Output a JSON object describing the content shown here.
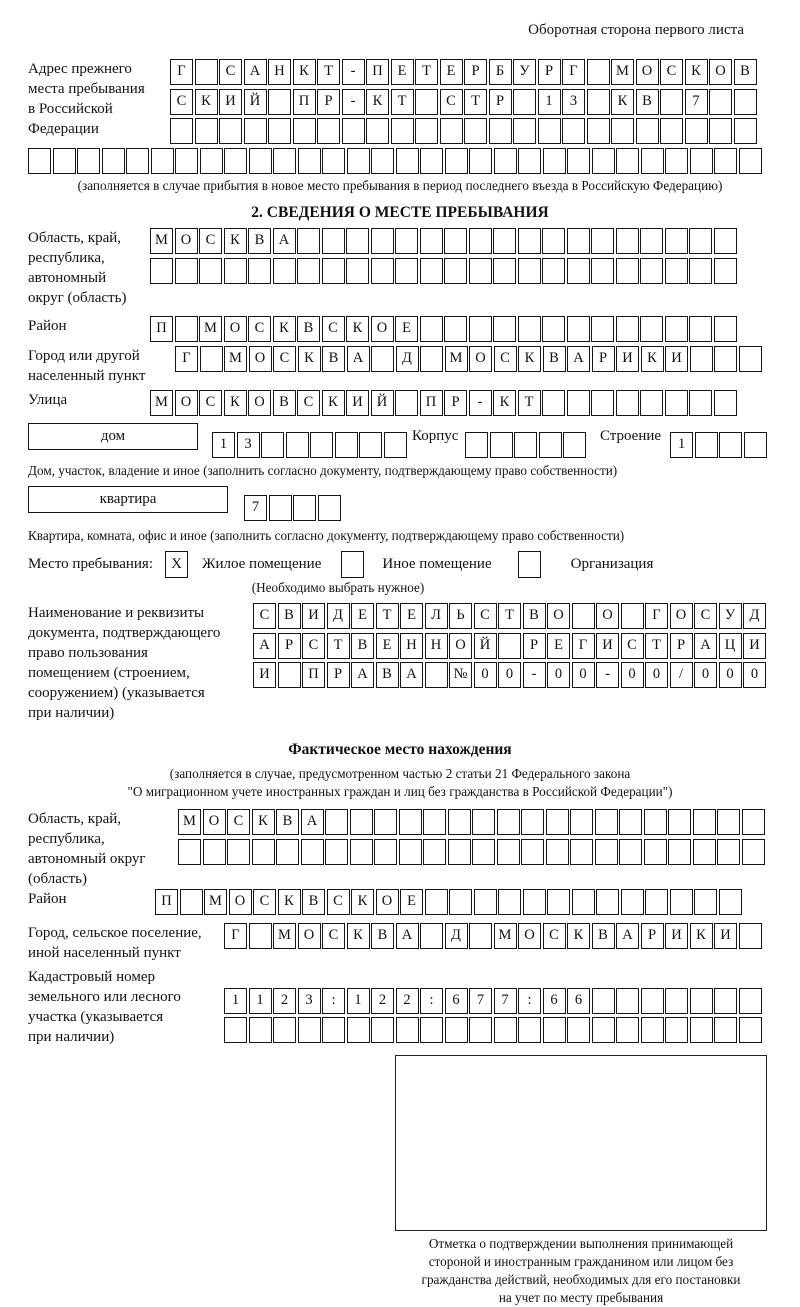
{
  "header": {
    "note": "Оборотная сторона первого листа"
  },
  "prev_address": {
    "label": "Адрес прежнего\nместа пребывания\nв Российской\nФедерации",
    "row1": "Г САНКТ-ПЕТЕРБУРГ МОСКОВ",
    "row2": "СКИЙ ПР-КТ СТР 13 КВ 7",
    "row3": "",
    "row4": "",
    "caption": "(заполняется в случае прибытия в новое место пребывания в период последнего въезда в Российскую Федерацию)"
  },
  "section2": {
    "title": "2. СВЕДЕНИЯ О МЕСТЕ ПРЕБЫВАНИЯ",
    "region_label": "Область, край,\nреспублика,\nавтономный\nокруг (область)",
    "region_row1": "МОСКВА",
    "region_row2": "",
    "district_label": "Район",
    "district_row": "П МОСКВСКОЕ",
    "city_label": "Город или другой\nнаселенный пункт",
    "city_row": "Г МОСКВА Д МОСКВАРИКИ",
    "street_label": "Улица",
    "street_row": "МОСКОВСКИЙ ПР-КТ",
    "house_label": "дом",
    "house_row": "13",
    "korpus_label": "Корпус",
    "korpus_row": "",
    "stroenie_label": "Строение",
    "stroenie_row": "1",
    "house_caption": "Дом, участок, владение и иное (заполнить согласно документу, подтверждающему право собственности)",
    "apartment_label": "квартира",
    "apartment_row": "7",
    "apartment_caption": "Квартира, комната, офис и иное (заполнить согласно документу, подтверждающему право собственности)",
    "stay_label": "Место пребывания:",
    "stay_checkbox1": "X",
    "stay_option1": "Жилое помещение",
    "stay_checkbox2": "",
    "stay_option2": "Иное помещение",
    "stay_checkbox3": "",
    "stay_option3": "Организация",
    "stay_caption": "(Необходимо выбрать нужное)",
    "doc_label": "Наименование и реквизиты\nдокумента, подтверждающего\nправо пользования\nпомещением (строением,\nсооружением) (указывается\nпри наличии)",
    "doc_row1": "СВИДЕТЕЛЬСТВО О ГОСУД",
    "doc_row2": "АРСТВЕННОЙ РЕГИСТРАЦИ",
    "doc_row3": "И ПРАВА №00-00-00/000"
  },
  "actual_location": {
    "title": "Фактическое место нахождения",
    "caption": "(заполняется в случае, предусмотренном частью 2 статьи 21 Федерального закона\n\"О миграционном учете иностранных граждан и лиц без гражданства в Российской Федерации\")",
    "region_label": "Область, край,\nреспублика,\nавтономный округ\n(область)",
    "region_row1": "МОСКВА",
    "region_row2": "",
    "district_label": "Район",
    "district_row": "П МОСКВСКОЕ",
    "city_label": "Город, сельское поселение,\nиной населенный пункт",
    "city_row": "Г МОСКВА Д МОСКВАРИКИ",
    "cadastre_label": "Кадастровый номер\nземельного или лесного\nучастка (указывается\nпри наличии)",
    "cadastre_row1": "1123:122:677:66",
    "cadastre_row2": "",
    "stamp_caption": "Отметка о подтверждении выполнения принимающей\nстороной и иностранным гражданином или лицом без\nгражданства действий, необходимых для его постановки\nна учет по месту пребывания"
  }
}
